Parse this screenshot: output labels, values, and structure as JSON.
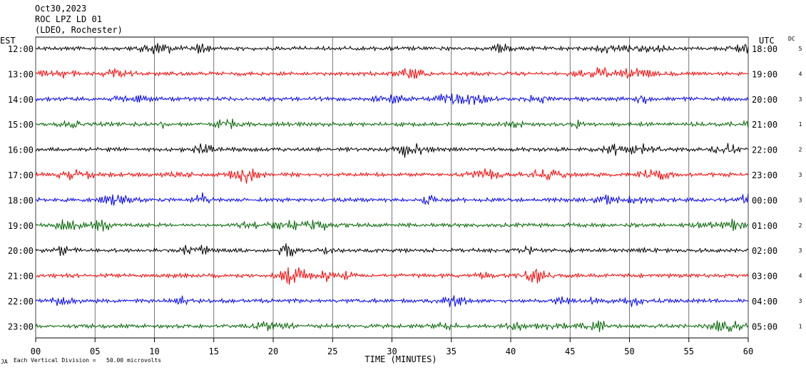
{
  "header": {
    "date": "Oct30,2023",
    "station": "ROC LPZ LD 01",
    "network": "(LDEO, Rochester)"
  },
  "left_axis_label": "EST",
  "right_axis_label": "UTC",
  "dc_label": "DC",
  "footer": {
    "scale_note": "Each Vertical Division =   50.00 microvolts",
    "mark": "JA"
  },
  "chart_data": {
    "type": "line",
    "xlabel": "TIME (MINUTES)",
    "xlim": [
      0,
      60
    ],
    "x_ticks": [
      "00",
      "05",
      "10",
      "15",
      "20",
      "25",
      "30",
      "35",
      "40",
      "45",
      "50",
      "55",
      "60"
    ],
    "trace_colors": [
      "#000000",
      "#ff0000",
      "#0000ff",
      "#006400"
    ],
    "rows": [
      {
        "est": "12:00",
        "utc": "18:00",
        "dc": "5"
      },
      {
        "est": "13:00",
        "utc": "19:00",
        "dc": "4"
      },
      {
        "est": "14:00",
        "utc": "20:00",
        "dc": "3"
      },
      {
        "est": "15:00",
        "utc": "21:00",
        "dc": "1"
      },
      {
        "est": "16:00",
        "utc": "22:00",
        "dc": "2"
      },
      {
        "est": "17:00",
        "utc": "23:00",
        "dc": "3"
      },
      {
        "est": "18:00",
        "utc": "00:00",
        "dc": "3"
      },
      {
        "est": "19:00",
        "utc": "01:00",
        "dc": "2"
      },
      {
        "est": "20:00",
        "utc": "02:00",
        "dc": "3"
      },
      {
        "est": "21:00",
        "utc": "03:00",
        "dc": "4"
      },
      {
        "est": "22:00",
        "utc": "04:00",
        "dc": "3"
      },
      {
        "est": "23:00",
        "utc": "05:00",
        "dc": "1"
      }
    ]
  }
}
